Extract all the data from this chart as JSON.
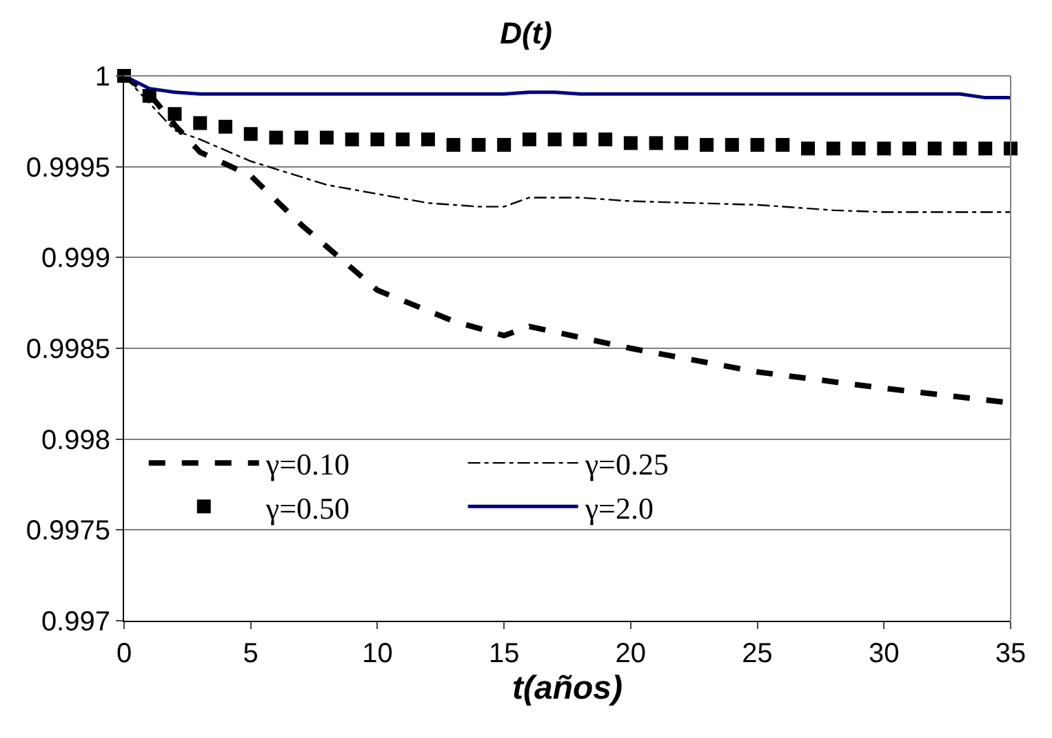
{
  "chart_data": {
    "type": "line",
    "title": "D(t)",
    "xlabel": "t(años)",
    "xlim": [
      0,
      35
    ],
    "xticks": [
      0,
      5,
      10,
      15,
      20,
      25,
      30,
      35
    ],
    "ylim": [
      0.997,
      1
    ],
    "yticks": [
      0.997,
      0.9975,
      0.998,
      0.9985,
      0.999,
      0.9995,
      1
    ],
    "grid": "y",
    "legend": "bottom left",
    "series": [
      {
        "name": "γ=0.10",
        "color": "#000000",
        "line_style": "dashed",
        "x": [
          0,
          1,
          2,
          3,
          5,
          7,
          10,
          13,
          15,
          16,
          20,
          25,
          30,
          35
        ],
        "values": [
          1,
          0.9999,
          0.99973,
          0.99958,
          0.99945,
          0.99918,
          0.99882,
          0.99865,
          0.99857,
          0.99862,
          0.9985,
          0.99837,
          0.99828,
          0.9982
        ]
      },
      {
        "name": "γ=0.25",
        "color": "#000000",
        "line_style": "dashdot",
        "x": [
          0,
          2,
          3,
          5,
          8,
          10,
          12,
          14,
          15,
          16,
          18,
          20,
          25,
          28,
          30,
          35
        ],
        "values": [
          1,
          0.9997,
          0.99965,
          0.99953,
          0.9994,
          0.99935,
          0.9993,
          0.99928,
          0.99928,
          0.99933,
          0.99933,
          0.99931,
          0.99929,
          0.99926,
          0.99925,
          0.99925
        ]
      },
      {
        "name": "γ=0.50",
        "color": "#000000",
        "type": "scatter",
        "marker": "square",
        "x": [
          0,
          1,
          2,
          3,
          4,
          5,
          6,
          7,
          8,
          9,
          10,
          11,
          12,
          13,
          14,
          15,
          16,
          17,
          18,
          19,
          20,
          21,
          22,
          23,
          24,
          25,
          26,
          27,
          28,
          29,
          30,
          31,
          32,
          33,
          34,
          35
        ],
        "values": [
          1,
          0.99989,
          0.99979,
          0.99974,
          0.99972,
          0.99968,
          0.99966,
          0.99966,
          0.99966,
          0.99965,
          0.99965,
          0.99965,
          0.99965,
          0.99962,
          0.99962,
          0.99962,
          0.99965,
          0.99965,
          0.99965,
          0.99965,
          0.99963,
          0.99963,
          0.99963,
          0.99962,
          0.99962,
          0.99962,
          0.99962,
          0.9996,
          0.9996,
          0.9996,
          0.9996,
          0.9996,
          0.9996,
          0.9996,
          0.9996,
          0.9996
        ]
      },
      {
        "name": "γ=2.0",
        "color": "#000080",
        "line_style": "solid",
        "x": [
          0,
          1,
          2,
          3,
          15,
          16,
          17,
          18,
          33,
          34,
          35
        ],
        "values": [
          1,
          0.99993,
          0.99991,
          0.9999,
          0.9999,
          0.99991,
          0.99991,
          0.9999,
          0.9999,
          0.99988,
          0.99988
        ]
      }
    ]
  }
}
